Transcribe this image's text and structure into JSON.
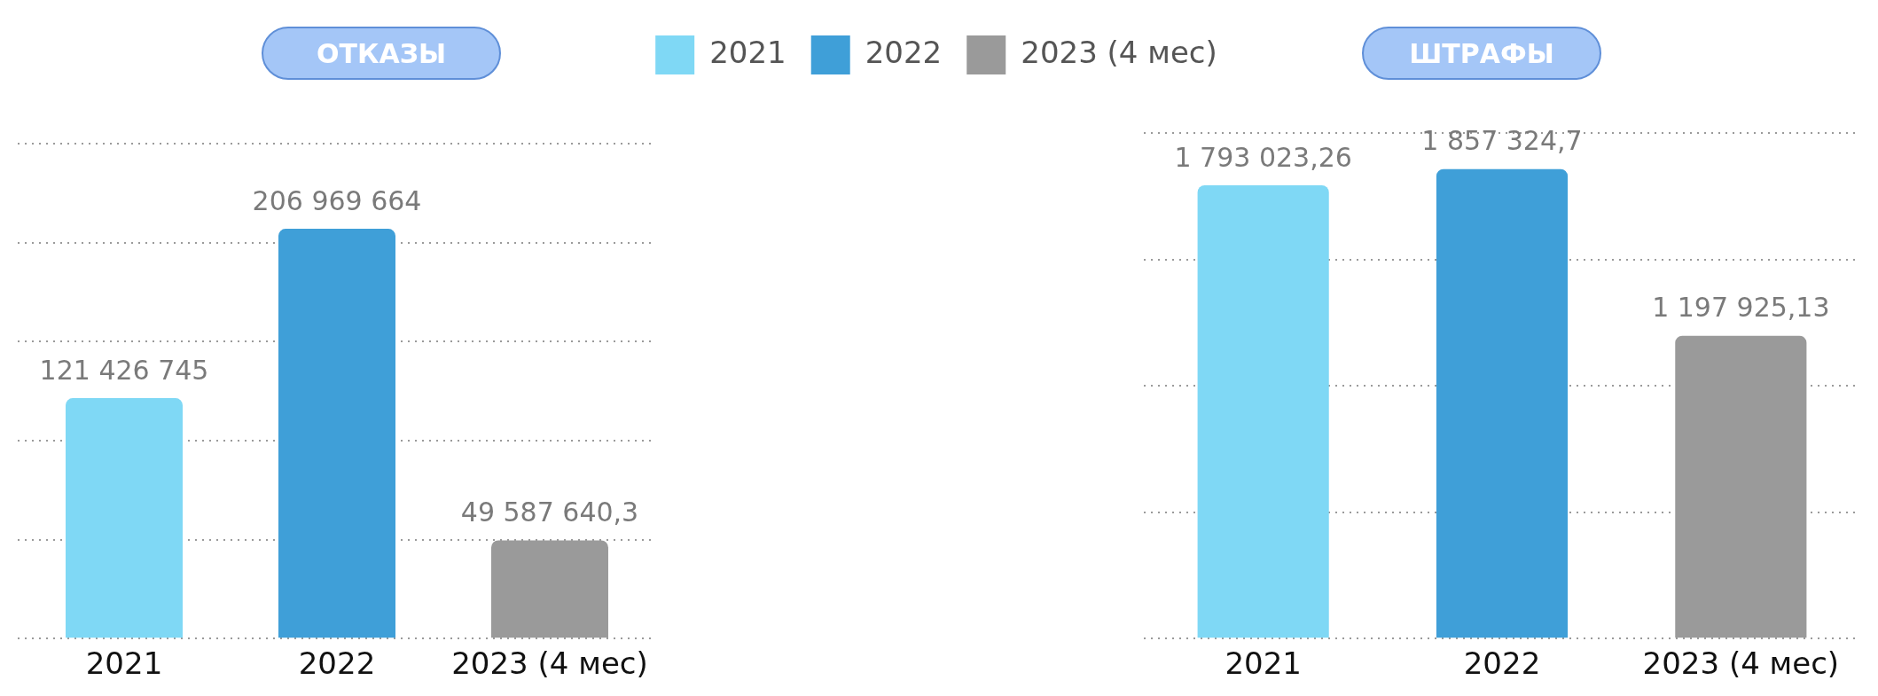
{
  "chart_data": [
    {
      "type": "bar",
      "title": "ОТКАЗЫ",
      "categories": [
        "2021",
        "2022",
        "2023 (4 мес)"
      ],
      "series": [
        {
          "name": "2021",
          "color": "#7fd8f5",
          "values": [
            121426745,
            null,
            null
          ],
          "value_labels": [
            "121 426 745",
            null,
            null
          ]
        },
        {
          "name": "2022",
          "color": "#3f9fd8",
          "values": [
            null,
            206969664,
            null
          ],
          "value_labels": [
            null,
            "206 969 664",
            null
          ]
        },
        {
          "name": "2023 (4 мес)",
          "color": "#9a9a9a",
          "values": [
            null,
            null,
            49587640.3
          ],
          "value_labels": [
            null,
            null,
            "49 587 640,3"
          ]
        }
      ],
      "legend": "top",
      "grid": "y",
      "tick_labels": "x"
    },
    {
      "type": "bar",
      "title": "ШТРАФЫ",
      "categories": [
        "2021",
        "2022",
        "2023 (4 мес)"
      ],
      "series": [
        {
          "color": "#7fd8f5",
          "values": [
            1793023.26,
            null,
            null
          ],
          "value_labels": [
            "1 793 023,26",
            null,
            null
          ]
        },
        {
          "color": "#3f9fd8",
          "values": [
            null,
            1857324.7,
            null
          ],
          "value_labels": [
            null,
            "1 857 324,7",
            null
          ]
        },
        {
          "color": "#9a9a9a",
          "values": [
            null,
            null,
            1197925.13
          ],
          "value_labels": [
            null,
            null,
            "1 197 925,13"
          ]
        }
      ],
      "grid": "y",
      "tick_labels": "x"
    }
  ]
}
